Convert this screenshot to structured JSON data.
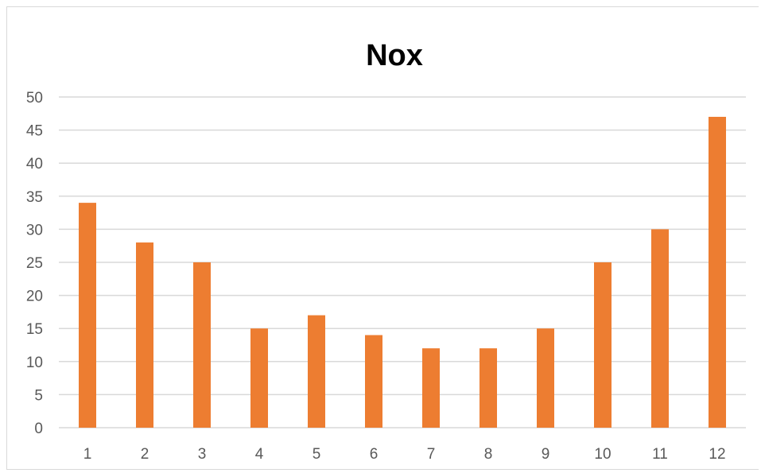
{
  "colors": {
    "bar": "#ED7D31",
    "grid": "#D9D9D9",
    "tick_text": "#595959",
    "title": "#000000"
  },
  "chart_data": {
    "type": "bar",
    "title": "Nox",
    "xlabel": "",
    "ylabel": "",
    "categories": [
      "1",
      "2",
      "3",
      "4",
      "5",
      "6",
      "7",
      "8",
      "9",
      "10",
      "11",
      "12"
    ],
    "values": [
      34,
      28,
      25,
      15,
      17,
      14,
      12,
      12,
      15,
      25,
      30,
      47
    ],
    "ylim": [
      0,
      50
    ],
    "yticks": [
      0,
      5,
      10,
      15,
      20,
      25,
      30,
      35,
      40,
      45,
      50
    ],
    "grid": true,
    "legend": "none"
  }
}
